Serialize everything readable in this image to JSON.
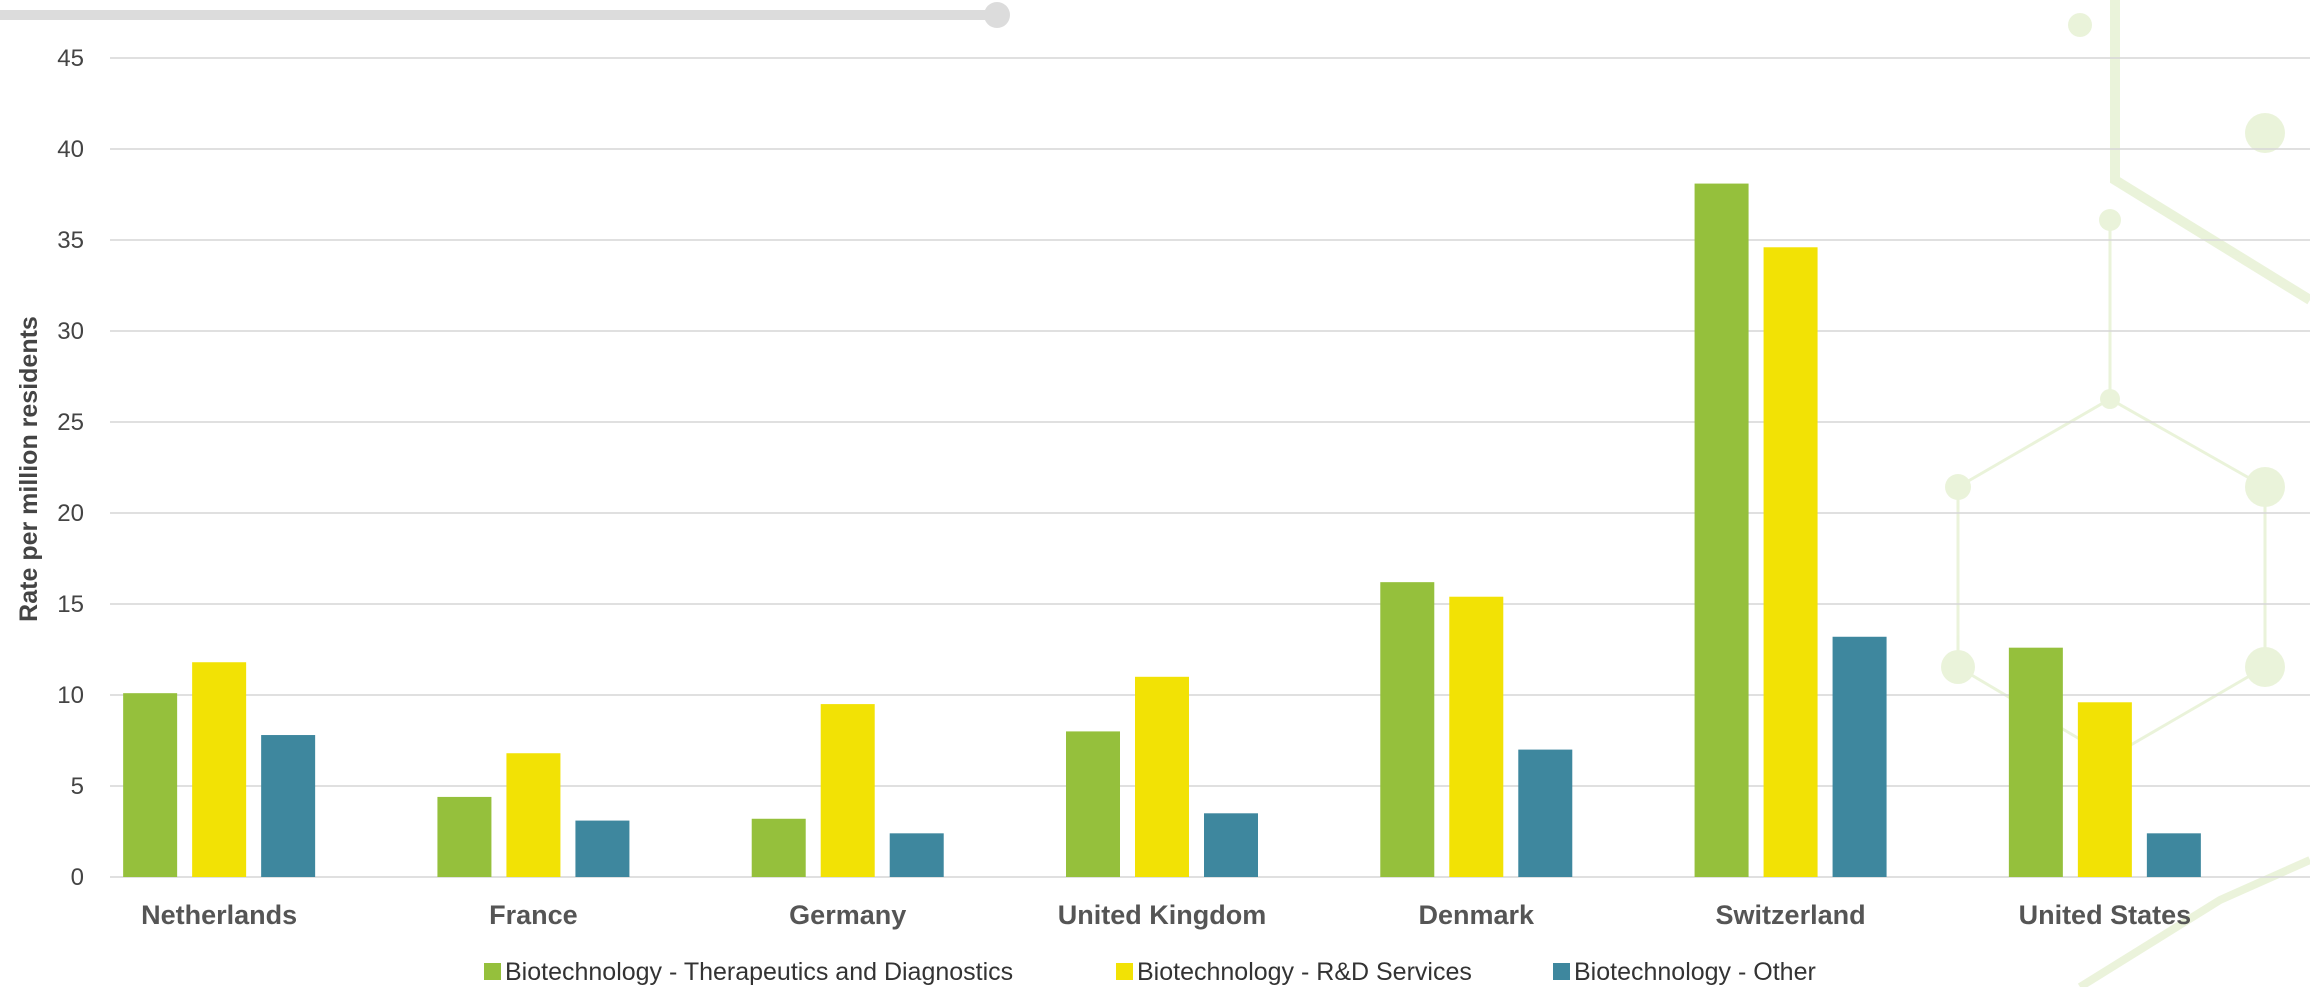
{
  "chart_data": {
    "type": "bar",
    "title": "",
    "xlabel": "",
    "ylabel": "Rate per million residents",
    "ylim": [
      0,
      45
    ],
    "yticks": [
      0,
      5,
      10,
      15,
      20,
      25,
      30,
      35,
      40,
      45
    ],
    "grid": true,
    "legend_position": "bottom",
    "categories": [
      "Netherlands",
      "France",
      "Germany",
      "United Kingdom",
      "Denmark",
      "Switzerland",
      "United States"
    ],
    "series": [
      {
        "name": "Biotechnology - Therapeutics and Diagnostics",
        "color": "#95c03c",
        "values": [
          10.1,
          4.4,
          3.2,
          8.0,
          16.2,
          38.1,
          12.6
        ]
      },
      {
        "name": "Biotechnology - R&D Services",
        "color": "#f2e205",
        "values": [
          11.8,
          6.8,
          9.5,
          11.0,
          15.4,
          34.6,
          9.6
        ]
      },
      {
        "name": "Biotechnology - Other",
        "color": "#3e879e",
        "values": [
          7.8,
          3.1,
          2.4,
          3.5,
          7.0,
          13.2,
          2.4
        ]
      }
    ]
  }
}
